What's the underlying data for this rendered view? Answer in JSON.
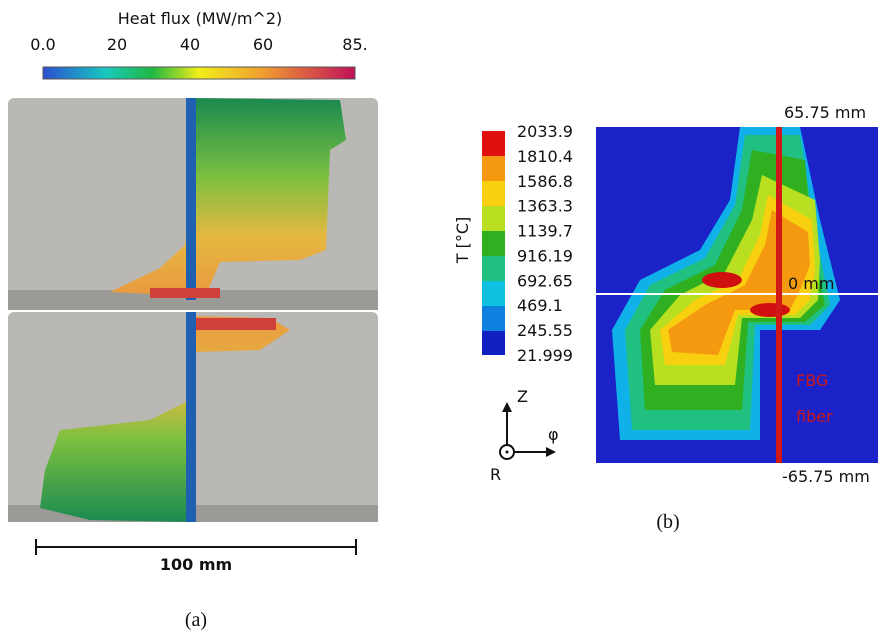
{
  "panel_a": {
    "colorbar_title": "Heat flux (MW/m^2)",
    "colorbar_ticks": [
      "0.0",
      "20",
      "40",
      "60",
      "85."
    ],
    "scale_bar_label": "100 mm",
    "caption": "(a)"
  },
  "panel_b": {
    "colorbar_title": "T [°C]",
    "colorbar_ticks": [
      "2033.9",
      "1810.4",
      "1586.8",
      "1363.3",
      "1139.7",
      "916.19",
      "692.65",
      "469.1",
      "245.55",
      "21.999"
    ],
    "axis_labels": [
      "Z",
      "φ",
      "R"
    ],
    "top_label": "65.75 mm",
    "middle_label": "0 mm",
    "bottom_label": "-65.75 mm",
    "fiber_label": [
      "FBG",
      "fiber"
    ],
    "caption": "(b)"
  }
}
